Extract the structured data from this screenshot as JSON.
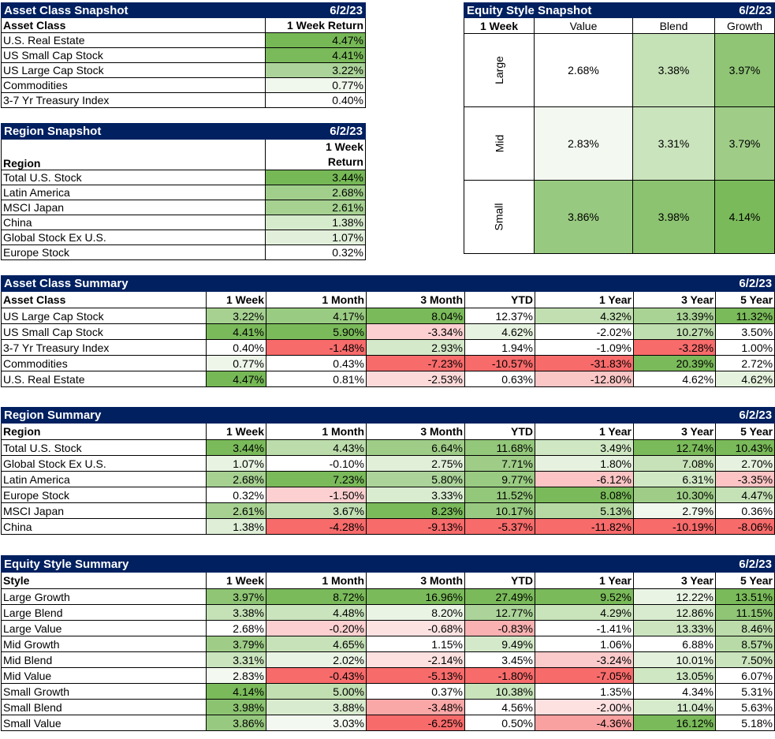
{
  "asset_snapshot": {
    "title": "Asset Class Snapshot",
    "date": "6/2/23",
    "col_label": "Asset Class",
    "col_return": "1 Week Return",
    "rows": [
      {
        "name": "U.S. Real Estate",
        "value": "4.47%",
        "bg": "#76b856"
      },
      {
        "name": "US Small Cap Stock",
        "value": "4.41%",
        "bg": "#7aba5a"
      },
      {
        "name": "US Large Cap Stock",
        "value": "3.22%",
        "bg": "#acd49a"
      },
      {
        "name": "Commodities",
        "value": "0.77%",
        "bg": "#f0f7ec"
      },
      {
        "name": "3-7 Yr Treasury Index",
        "value": "0.40%",
        "bg": "#ffffff"
      }
    ]
  },
  "region_snapshot": {
    "title": "Region Snapshot",
    "date": "6/2/23",
    "col_label": "Region",
    "col_return_line1": "1 Week",
    "col_return_line2": "Return",
    "rows": [
      {
        "name": "Total U.S. Stock",
        "value": "3.44%",
        "bg": "#76b856"
      },
      {
        "name": "Latin America",
        "value": "2.68%",
        "bg": "#a1cf8b"
      },
      {
        "name": "MSCI Japan",
        "value": "2.61%",
        "bg": "#a6d191"
      },
      {
        "name": "China",
        "value": "1.38%",
        "bg": "#d6eacc"
      },
      {
        "name": "Global Stock Ex U.S.",
        "value": "1.07%",
        "bg": "#e2f0db"
      },
      {
        "name": "Europe Stock",
        "value": "0.32%",
        "bg": "#ffffff"
      }
    ]
  },
  "style_snapshot": {
    "title": "Equity Style Snapshot",
    "date": "6/2/23",
    "corner": "1 Week",
    "cols": [
      "Value",
      "Blend",
      "Growth"
    ],
    "rows": [
      {
        "label": "Large",
        "cells": [
          {
            "value": "2.68%",
            "bg": "#ffffff"
          },
          {
            "value": "3.38%",
            "bg": "#c5e1b6"
          },
          {
            "value": "3.97%",
            "bg": "#8fc575"
          }
        ]
      },
      {
        "label": "Mid",
        "cells": [
          {
            "value": "2.83%",
            "bg": "#f3f9f0"
          },
          {
            "value": "3.31%",
            "bg": "#cae4bd"
          },
          {
            "value": "3.79%",
            "bg": "#9fcd88"
          }
        ]
      },
      {
        "label": "Small",
        "cells": [
          {
            "value": "3.86%",
            "bg": "#98c980"
          },
          {
            "value": "3.98%",
            "bg": "#8cc371"
          },
          {
            "value": "4.14%",
            "bg": "#7aba5a"
          }
        ]
      }
    ]
  },
  "asset_summary": {
    "title": "Asset Class Summary",
    "date": "6/2/23",
    "headers": [
      "Asset Class",
      "1 Week",
      "1 Month",
      "3 Month",
      "YTD",
      "1 Year",
      "3 Year",
      "5 Year"
    ],
    "rows": [
      {
        "name": "US Large Cap Stock",
        "cells": [
          {
            "v": "3.22%",
            "bg": "#a6d191"
          },
          {
            "v": "4.17%",
            "bg": "#9acb82"
          },
          {
            "v": "8.04%",
            "bg": "#7aba5a"
          },
          {
            "v": "12.37%",
            "bg": "#ffffff"
          },
          {
            "v": "4.32%",
            "bg": "#c1dfb1"
          },
          {
            "v": "13.39%",
            "bg": "#a9d395"
          },
          {
            "v": "11.32%",
            "bg": "#7aba5a"
          }
        ]
      },
      {
        "name": "US Small Cap Stock",
        "cells": [
          {
            "v": "4.41%",
            "bg": "#7aba5a"
          },
          {
            "v": "5.90%",
            "bg": "#7aba5a"
          },
          {
            "v": "-3.34%",
            "bg": "#fcd0d0"
          },
          {
            "v": "4.62%",
            "bg": "#e7f3e1"
          },
          {
            "v": "-2.02%",
            "bg": "#ffffff"
          },
          {
            "v": "10.27%",
            "bg": "#bfdeaf"
          },
          {
            "v": "3.50%",
            "bg": "#ffffff"
          }
        ]
      },
      {
        "name": "3-7 Yr Treasury Index",
        "cells": [
          {
            "v": "0.40%",
            "bg": "#ffffff"
          },
          {
            "v": "-1.48%",
            "bg": "#f86b6b"
          },
          {
            "v": "2.93%",
            "bg": "#d4e9c9"
          },
          {
            "v": "1.94%",
            "bg": "#ffffff"
          },
          {
            "v": "-1.09%",
            "bg": "#ffffff"
          },
          {
            "v": "-3.28%",
            "bg": "#f86b6b"
          },
          {
            "v": "1.00%",
            "bg": "#ffffff"
          }
        ]
      },
      {
        "name": "Commodities",
        "cells": [
          {
            "v": "0.77%",
            "bg": "#eef6ea"
          },
          {
            "v": "0.43%",
            "bg": "#ffffff"
          },
          {
            "v": "-7.23%",
            "bg": "#f86b6b"
          },
          {
            "v": "-10.57%",
            "bg": "#f86b6b"
          },
          {
            "v": "-31.83%",
            "bg": "#f86b6b"
          },
          {
            "v": "20.39%",
            "bg": "#7aba5a"
          },
          {
            "v": "2.72%",
            "bg": "#ffffff"
          }
        ]
      },
      {
        "name": "U.S. Real Estate",
        "cells": [
          {
            "v": "4.47%",
            "bg": "#76b856"
          },
          {
            "v": "0.81%",
            "bg": "#ffffff"
          },
          {
            "v": "-2.53%",
            "bg": "#fddada"
          },
          {
            "v": "0.63%",
            "bg": "#ffffff"
          },
          {
            "v": "-12.80%",
            "bg": "#fbc6c6"
          },
          {
            "v": "4.62%",
            "bg": "#ffffff"
          },
          {
            "v": "4.62%",
            "bg": "#e5f2de"
          }
        ]
      }
    ]
  },
  "region_summary": {
    "title": "Region Summary",
    "date": "6/2/23",
    "headers": [
      "Region",
      "1 Week",
      "1 Month",
      "3 Month",
      "YTD",
      "1 Year",
      "3 Year",
      "5 Year"
    ],
    "rows": [
      {
        "name": "Total U.S. Stock",
        "cells": [
          {
            "v": "3.44%",
            "bg": "#7aba5a"
          },
          {
            "v": "4.43%",
            "bg": "#bcdcab"
          },
          {
            "v": "6.64%",
            "bg": "#9fcd88"
          },
          {
            "v": "11.68%",
            "bg": "#93c77a"
          },
          {
            "v": "3.49%",
            "bg": "#d0e7c4"
          },
          {
            "v": "12.74%",
            "bg": "#7aba5a"
          },
          {
            "v": "10.43%",
            "bg": "#7aba5a"
          }
        ]
      },
      {
        "name": "Global Stock Ex U.S.",
        "cells": [
          {
            "v": "1.07%",
            "bg": "#e8f3e2"
          },
          {
            "v": "-0.10%",
            "bg": "#ffffff"
          },
          {
            "v": "2.75%",
            "bg": "#e1efd9"
          },
          {
            "v": "7.71%",
            "bg": "#9fcd88"
          },
          {
            "v": "1.80%",
            "bg": "#e6f2df"
          },
          {
            "v": "7.08%",
            "bg": "#c7e2b8"
          },
          {
            "v": "2.70%",
            "bg": "#e6f2df"
          }
        ]
      },
      {
        "name": "Latin America",
        "cells": [
          {
            "v": "2.68%",
            "bg": "#a6d191"
          },
          {
            "v": "7.23%",
            "bg": "#7aba5a"
          },
          {
            "v": "5.80%",
            "bg": "#acd49a"
          },
          {
            "v": "9.77%",
            "bg": "#9acb82"
          },
          {
            "v": "-6.12%",
            "bg": "#fcc4c4"
          },
          {
            "v": "6.31%",
            "bg": "#d1e8c5"
          },
          {
            "v": "-3.35%",
            "bg": "#fcc4c4"
          }
        ]
      },
      {
        "name": "Europe Stock",
        "cells": [
          {
            "v": "0.32%",
            "bg": "#ffffff"
          },
          {
            "v": "-1.50%",
            "bg": "#fcd0d0"
          },
          {
            "v": "3.33%",
            "bg": "#d9ecd0"
          },
          {
            "v": "11.52%",
            "bg": "#93c77a"
          },
          {
            "v": "8.08%",
            "bg": "#7aba5a"
          },
          {
            "v": "10.30%",
            "bg": "#9fcd88"
          },
          {
            "v": "4.47%",
            "bg": "#c5e1b6"
          }
        ]
      },
      {
        "name": "MSCI Japan",
        "cells": [
          {
            "v": "2.61%",
            "bg": "#a6d191"
          },
          {
            "v": "3.67%",
            "bg": "#c3e0b4"
          },
          {
            "v": "8.23%",
            "bg": "#7aba5a"
          },
          {
            "v": "10.17%",
            "bg": "#98c980"
          },
          {
            "v": "5.13%",
            "bg": "#b6d9a4"
          },
          {
            "v": "2.79%",
            "bg": "#f0f7ec"
          },
          {
            "v": "0.36%",
            "bg": "#ffffff"
          }
        ]
      },
      {
        "name": "China",
        "cells": [
          {
            "v": "1.38%",
            "bg": "#dfeed7"
          },
          {
            "v": "-4.28%",
            "bg": "#f86b6b"
          },
          {
            "v": "-9.13%",
            "bg": "#f86b6b"
          },
          {
            "v": "-5.37%",
            "bg": "#f86b6b"
          },
          {
            "v": "-11.82%",
            "bg": "#f86b6b"
          },
          {
            "v": "-10.19%",
            "bg": "#f86b6b"
          },
          {
            "v": "-8.06%",
            "bg": "#f86b6b"
          }
        ]
      }
    ]
  },
  "style_summary": {
    "title": "Equity Style Summary",
    "date": "6/2/23",
    "headers": [
      "Style",
      "1 Week",
      "1 Month",
      "3 Month",
      "YTD",
      "1 Year",
      "3 Year",
      "5 Year"
    ],
    "rows": [
      {
        "name": "Large Growth",
        "cells": [
          {
            "v": "3.97%",
            "bg": "#8fc575"
          },
          {
            "v": "8.72%",
            "bg": "#7aba5a"
          },
          {
            "v": "16.96%",
            "bg": "#7aba5a"
          },
          {
            "v": "27.49%",
            "bg": "#7aba5a"
          },
          {
            "v": "9.52%",
            "bg": "#7aba5a"
          },
          {
            "v": "12.22%",
            "bg": "#eaf4e5"
          },
          {
            "v": "13.51%",
            "bg": "#7aba5a"
          }
        ]
      },
      {
        "name": "Large Blend",
        "cells": [
          {
            "v": "3.38%",
            "bg": "#c5e1b6"
          },
          {
            "v": "4.48%",
            "bg": "#cae4bd"
          },
          {
            "v": "8.20%",
            "bg": "#eaf4e5"
          },
          {
            "v": "12.77%",
            "bg": "#acd49a"
          },
          {
            "v": "4.29%",
            "bg": "#c9e3bb"
          },
          {
            "v": "12.86%",
            "bg": "#d8ebce"
          },
          {
            "v": "11.15%",
            "bg": "#8fc575"
          }
        ]
      },
      {
        "name": "Large Value",
        "cells": [
          {
            "v": "2.68%",
            "bg": "#ffffff"
          },
          {
            "v": "-0.20%",
            "bg": "#fcd0d0"
          },
          {
            "v": "-0.68%",
            "bg": "#fde2e2"
          },
          {
            "v": "-0.83%",
            "bg": "#fab1b1"
          },
          {
            "v": "-1.41%",
            "bg": "#ffffff"
          },
          {
            "v": "13.33%",
            "bg": "#cce5bf"
          },
          {
            "v": "8.46%",
            "bg": "#bcdcab"
          }
        ]
      },
      {
        "name": "Mid Growth",
        "cells": [
          {
            "v": "3.79%",
            "bg": "#9fcd88"
          },
          {
            "v": "4.65%",
            "bg": "#c7e2b8"
          },
          {
            "v": "1.15%",
            "bg": "#ffffff"
          },
          {
            "v": "9.49%",
            "bg": "#d4e9c9"
          },
          {
            "v": "1.06%",
            "bg": "#ffffff"
          },
          {
            "v": "6.88%",
            "bg": "#ffffff"
          },
          {
            "v": "8.57%",
            "bg": "#b8daa6"
          }
        ]
      },
      {
        "name": "Mid Blend",
        "cells": [
          {
            "v": "3.31%",
            "bg": "#cae4bd"
          },
          {
            "v": "2.02%",
            "bg": "#eaf4e5"
          },
          {
            "v": "-2.14%",
            "bg": "#fde0e0"
          },
          {
            "v": "3.45%",
            "bg": "#ffffff"
          },
          {
            "v": "-3.24%",
            "bg": "#fbcaca"
          },
          {
            "v": "10.01%",
            "bg": "#e3f0dc"
          },
          {
            "v": "7.50%",
            "bg": "#cae4bd"
          }
        ]
      },
      {
        "name": "Mid Value",
        "cells": [
          {
            "v": "2.83%",
            "bg": "#f3f9f0"
          },
          {
            "v": "-0.43%",
            "bg": "#f86b6b"
          },
          {
            "v": "-5.13%",
            "bg": "#f86b6b"
          },
          {
            "v": "-1.80%",
            "bg": "#f86b6b"
          },
          {
            "v": "-7.05%",
            "bg": "#f86b6b"
          },
          {
            "v": "13.05%",
            "bg": "#d0e7c4"
          },
          {
            "v": "6.07%",
            "bg": "#ffffff"
          }
        ]
      },
      {
        "name": "Small Growth",
        "cells": [
          {
            "v": "4.14%",
            "bg": "#7aba5a"
          },
          {
            "v": "5.00%",
            "bg": "#c1dfb1"
          },
          {
            "v": "0.37%",
            "bg": "#ffffff"
          },
          {
            "v": "10.38%",
            "bg": "#c9e3bb"
          },
          {
            "v": "1.35%",
            "bg": "#ffffff"
          },
          {
            "v": "4.34%",
            "bg": "#ffffff"
          },
          {
            "v": "5.31%",
            "bg": "#ffffff"
          }
        ]
      },
      {
        "name": "Small Blend",
        "cells": [
          {
            "v": "3.98%",
            "bg": "#8cc371"
          },
          {
            "v": "3.88%",
            "bg": "#d8ebce"
          },
          {
            "v": "-3.48%",
            "bg": "#faa7a7"
          },
          {
            "v": "4.56%",
            "bg": "#ffffff"
          },
          {
            "v": "-2.00%",
            "bg": "#fde0e0"
          },
          {
            "v": "11.04%",
            "bg": "#d6eacc"
          },
          {
            "v": "5.63%",
            "bg": "#ffffff"
          }
        ]
      },
      {
        "name": "Small Value",
        "cells": [
          {
            "v": "3.86%",
            "bg": "#98c980"
          },
          {
            "v": "3.03%",
            "bg": "#f3f9f0"
          },
          {
            "v": "-6.25%",
            "bg": "#f86b6b"
          },
          {
            "v": "0.50%",
            "bg": "#ffffff"
          },
          {
            "v": "-4.36%",
            "bg": "#f9a0a0"
          },
          {
            "v": "16.12%",
            "bg": "#7aba5a"
          },
          {
            "v": "5.18%",
            "bg": "#ffffff"
          }
        ]
      }
    ]
  }
}
